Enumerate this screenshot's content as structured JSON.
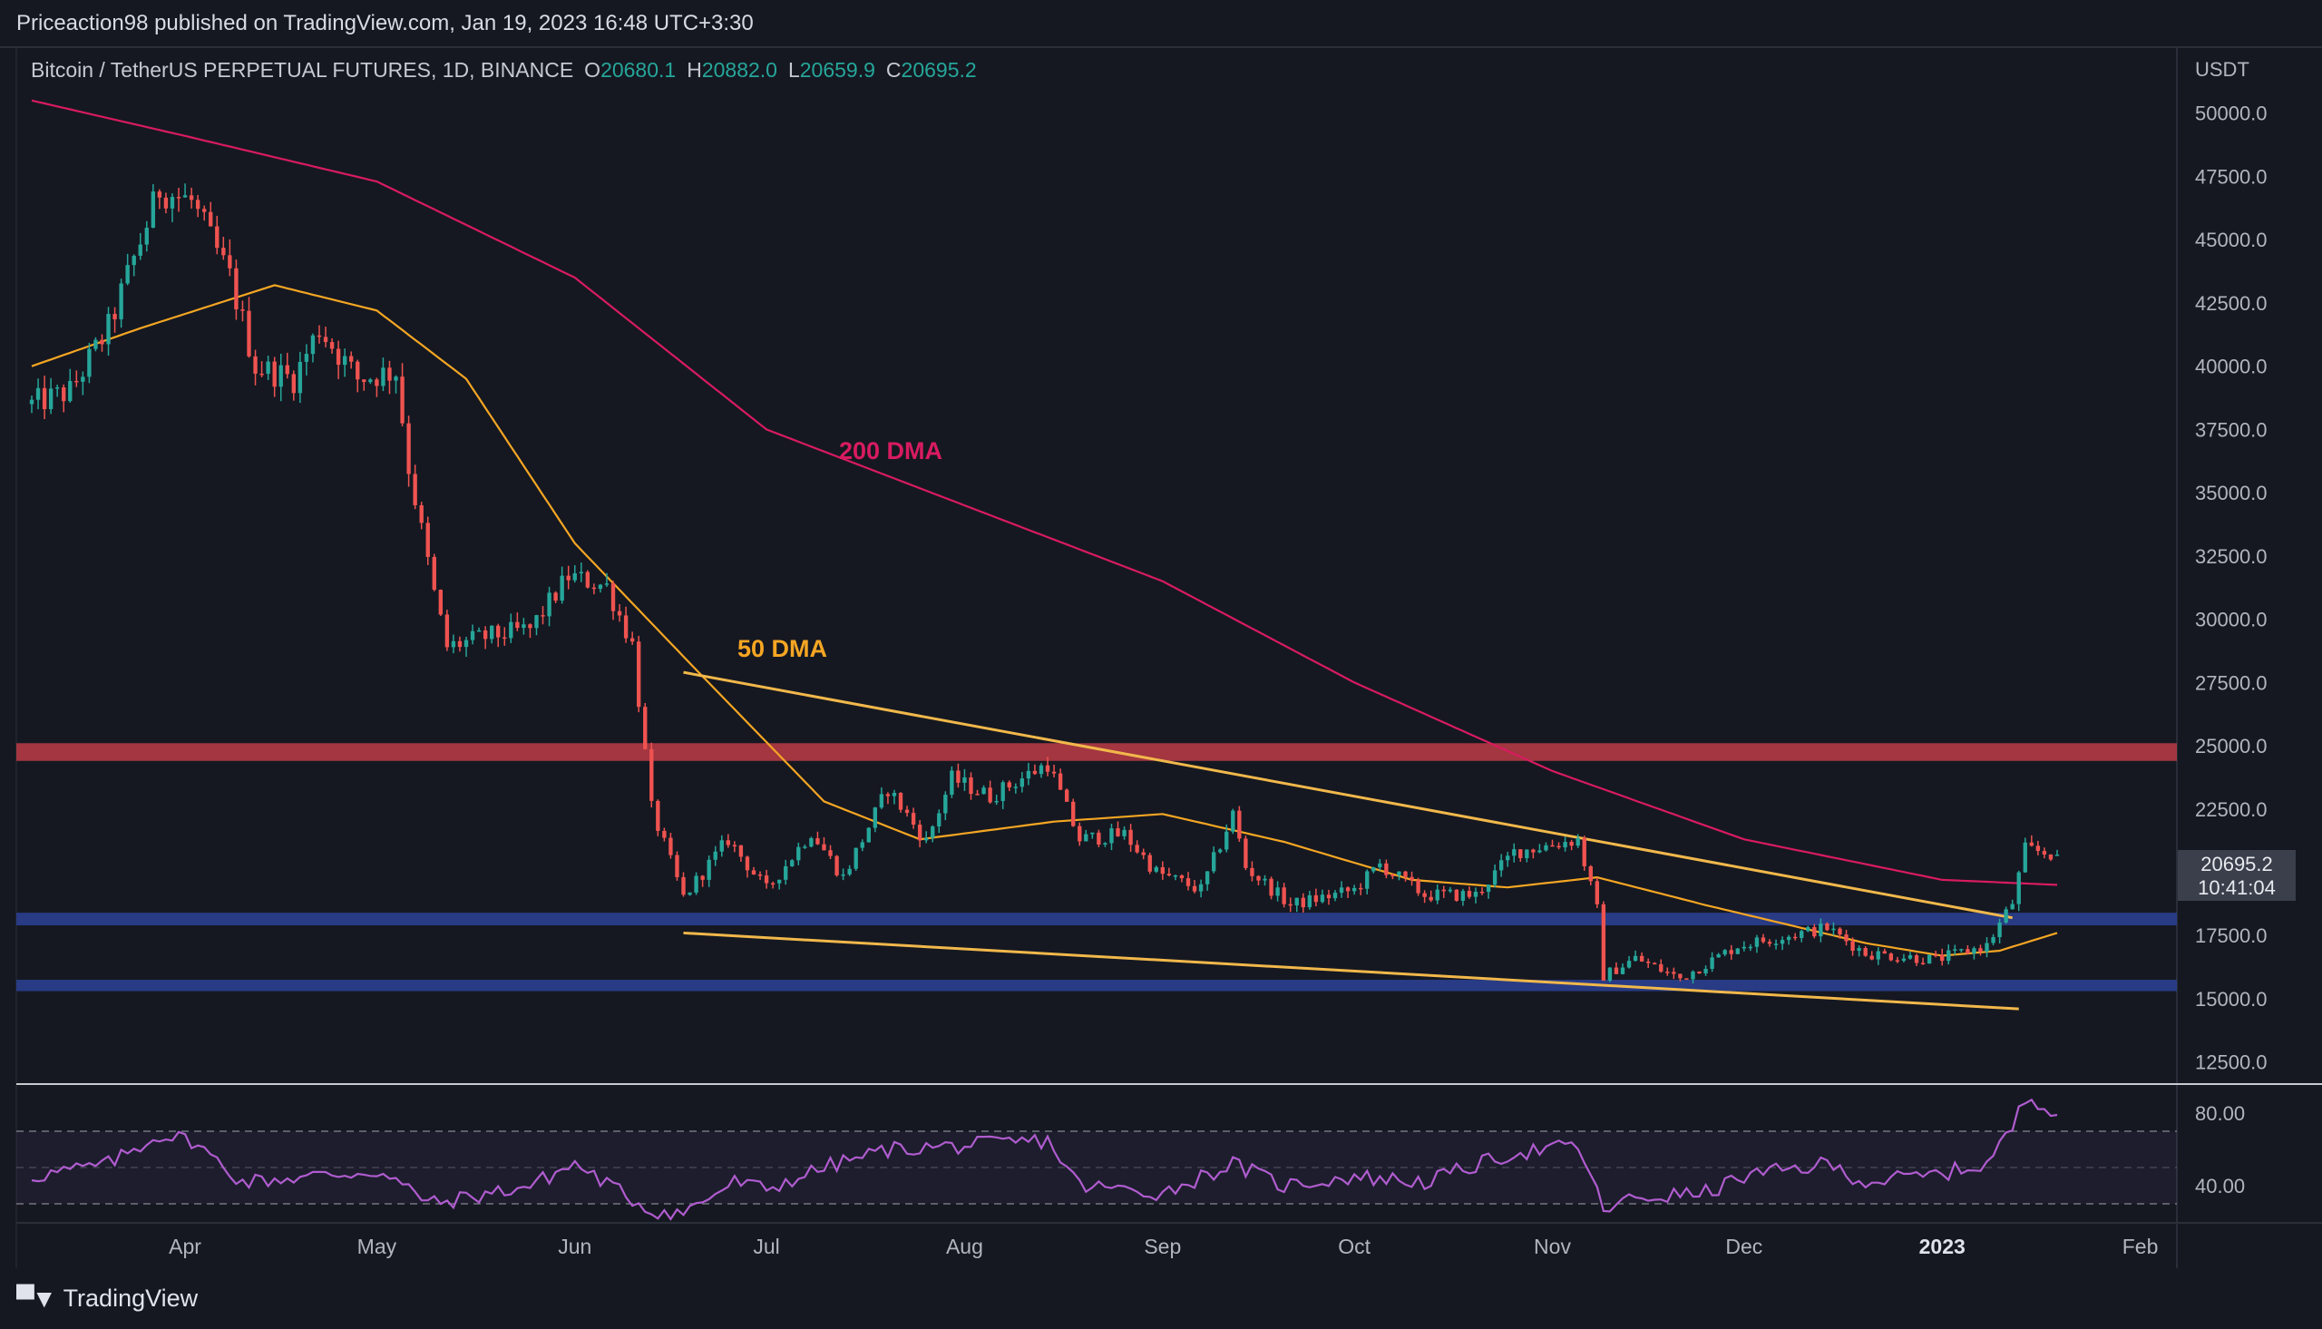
{
  "header": {
    "publisher_line": "Priceaction98 published on TradingView.com, Jan 19, 2023 16:48 UTC+3:30"
  },
  "legend": {
    "symbol": "Bitcoin / TetherUS PERPETUAL FUTURES, 1D, BINANCE",
    "o_label": "O",
    "o_value": "20680.1",
    "h_label": "H",
    "h_value": "20882.0",
    "l_label": "L",
    "l_value": "20659.9",
    "c_label": "C",
    "c_value": "20695.2"
  },
  "price_tag": {
    "price": "20695.2",
    "countdown": "10:41:04"
  },
  "footer": {
    "brand": "TradingView"
  },
  "colors": {
    "background": "#151821",
    "up": "#26a69a",
    "down": "#ef5350",
    "ma200": "#d81b60",
    "ma50": "#f5a623",
    "trendline": "#f2b84b",
    "resistance_zone": "#b33a44",
    "support_zone": "#2a3f8f",
    "rsi": "#b05ccf"
  },
  "chart_data": {
    "type": "candlestick",
    "title": "Bitcoin / TetherUS PERPETUAL FUTURES, 1D, BINANCE",
    "y_axis_unit": "USDT",
    "y_ticks": [
      "50000.0",
      "47500.0",
      "45000.0",
      "42500.0",
      "40000.0",
      "37500.0",
      "35000.0",
      "32500.0",
      "30000.0",
      "27500.0",
      "25000.0",
      "22500.0",
      "17500.0",
      "15000.0",
      "12500.0"
    ],
    "ylim": [
      11700,
      52500
    ],
    "x_ticks": [
      "Apr",
      "May",
      "Jun",
      "Jul",
      "Aug",
      "Sep",
      "Oct",
      "Nov",
      "Dec",
      "2023",
      "Feb"
    ],
    "x_tick_dates": [
      "2022-04-01",
      "2022-05-01",
      "2022-06-01",
      "2022-07-01",
      "2022-08-01",
      "2022-09-01",
      "2022-10-01",
      "2022-11-01",
      "2022-12-01",
      "2023-01-01",
      "2023-02-01"
    ],
    "date_range": [
      "2022-03-08",
      "2023-01-19"
    ],
    "price_anchors": [
      [
        "2022-03-08",
        38500
      ],
      [
        "2022-03-14",
        39000
      ],
      [
        "2022-03-20",
        41500
      ],
      [
        "2022-03-28",
        47000
      ],
      [
        "2022-04-02",
        46500
      ],
      [
        "2022-04-08",
        43500
      ],
      [
        "2022-04-12",
        40000
      ],
      [
        "2022-04-18",
        39500
      ],
      [
        "2022-04-22",
        41500
      ],
      [
        "2022-04-28",
        39500
      ],
      [
        "2022-05-04",
        39800
      ],
      [
        "2022-05-06",
        36000
      ],
      [
        "2022-05-10",
        31000
      ],
      [
        "2022-05-12",
        28900
      ],
      [
        "2022-05-18",
        29300
      ],
      [
        "2022-05-25",
        29600
      ],
      [
        "2022-05-31",
        31700
      ],
      [
        "2022-06-06",
        31300
      ],
      [
        "2022-06-10",
        29000
      ],
      [
        "2022-06-13",
        22500
      ],
      [
        "2022-06-18",
        19000
      ],
      [
        "2022-06-25",
        21300
      ],
      [
        "2022-07-01",
        19300
      ],
      [
        "2022-07-08",
        21600
      ],
      [
        "2022-07-13",
        19800
      ],
      [
        "2022-07-20",
        23300
      ],
      [
        "2022-07-26",
        21200
      ],
      [
        "2022-07-30",
        23700
      ],
      [
        "2022-08-05",
        23000
      ],
      [
        "2022-08-14",
        24300
      ],
      [
        "2022-08-19",
        21300
      ],
      [
        "2022-08-26",
        21500
      ],
      [
        "2022-08-31",
        20000
      ],
      [
        "2022-09-07",
        19300
      ],
      [
        "2022-09-12",
        22300
      ],
      [
        "2022-09-14",
        20200
      ],
      [
        "2022-09-21",
        18700
      ],
      [
        "2022-10-01",
        19300
      ],
      [
        "2022-10-05",
        20300
      ],
      [
        "2022-10-12",
        19100
      ],
      [
        "2022-10-20",
        19100
      ],
      [
        "2022-10-26",
        20800
      ],
      [
        "2022-11-05",
        21300
      ],
      [
        "2022-11-08",
        18500
      ],
      [
        "2022-11-09",
        15900
      ],
      [
        "2022-11-14",
        16600
      ],
      [
        "2022-11-21",
        15800
      ],
      [
        "2022-11-30",
        17100
      ],
      [
        "2022-12-14",
        17800
      ],
      [
        "2022-12-20",
        16800
      ],
      [
        "2022-12-31",
        16550
      ],
      [
        "2023-01-08",
        17100
      ],
      [
        "2023-01-12",
        18800
      ],
      [
        "2023-01-14",
        20900
      ],
      [
        "2023-01-19",
        20695
      ]
    ],
    "ohlc_last": {
      "open": 20680.1,
      "high": 20882.0,
      "low": 20659.9,
      "close": 20695.2
    },
    "moving_averages": [
      {
        "name": "200 DMA",
        "points": [
          [
            "2022-03-08",
            50500
          ],
          [
            "2022-04-01",
            49100
          ],
          [
            "2022-05-01",
            47300
          ],
          [
            "2022-06-01",
            43500
          ],
          [
            "2022-07-01",
            37500
          ],
          [
            "2022-08-01",
            34500
          ],
          [
            "2022-09-01",
            31500
          ],
          [
            "2022-10-01",
            27500
          ],
          [
            "2022-11-01",
            24000
          ],
          [
            "2022-12-01",
            21300
          ],
          [
            "2023-01-01",
            19700
          ],
          [
            "2023-01-19",
            19500
          ]
        ]
      },
      {
        "name": "50 DMA",
        "points": [
          [
            "2022-03-08",
            40000
          ],
          [
            "2022-03-25",
            41500
          ],
          [
            "2022-04-15",
            43200
          ],
          [
            "2022-05-01",
            42200
          ],
          [
            "2022-05-15",
            39500
          ],
          [
            "2022-06-01",
            33000
          ],
          [
            "2022-06-20",
            28000
          ],
          [
            "2022-07-10",
            22800
          ],
          [
            "2022-07-25",
            21300
          ],
          [
            "2022-08-15",
            22000
          ],
          [
            "2022-09-01",
            22300
          ],
          [
            "2022-09-20",
            21200
          ],
          [
            "2022-10-10",
            19700
          ],
          [
            "2022-10-25",
            19400
          ],
          [
            "2022-11-08",
            19800
          ],
          [
            "2022-11-25",
            18700
          ],
          [
            "2022-12-20",
            17200
          ],
          [
            "2023-01-01",
            16700
          ],
          [
            "2023-01-10",
            16900
          ],
          [
            "2023-01-19",
            17600
          ]
        ]
      }
    ],
    "trendlines": [
      {
        "name": "descending resistance",
        "from": [
          "2022-06-18",
          27900
        ],
        "to": [
          "2023-01-12",
          18200
        ]
      },
      {
        "name": "descending support",
        "from": [
          "2022-06-18",
          17600
        ],
        "to": [
          "2023-01-13",
          14600
        ]
      }
    ],
    "zones": [
      {
        "name": "resistance",
        "low": 24400,
        "high": 25100,
        "color": "#b33a44"
      },
      {
        "name": "support upper",
        "low": 17900,
        "high": 18400,
        "color": "#2a3f8f"
      },
      {
        "name": "support lower",
        "low": 15300,
        "high": 15750,
        "color": "#2a3f8f"
      }
    ],
    "annotations": [
      {
        "text": "200 DMA",
        "color": "#d81b60"
      },
      {
        "text": "50 DMA",
        "color": "#f5a623"
      }
    ],
    "rsi": {
      "y_ticks": [
        "80.00",
        "40.00"
      ],
      "levels": [
        70,
        50,
        30
      ],
      "ylim": [
        20,
        95
      ],
      "anchors": [
        [
          "2022-03-08",
          45
        ],
        [
          "2022-03-20",
          52
        ],
        [
          "2022-03-28",
          68
        ],
        [
          "2022-04-02",
          65
        ],
        [
          "2022-04-10",
          42
        ],
        [
          "2022-04-20",
          45
        ],
        [
          "2022-05-01",
          48
        ],
        [
          "2022-05-10",
          30
        ],
        [
          "2022-05-25",
          40
        ],
        [
          "2022-06-01",
          52
        ],
        [
          "2022-06-13",
          26
        ],
        [
          "2022-06-18",
          25
        ],
        [
          "2022-06-26",
          42
        ],
        [
          "2022-07-01",
          38
        ],
        [
          "2022-07-10",
          50
        ],
        [
          "2022-07-20",
          60
        ],
        [
          "2022-08-01",
          62
        ],
        [
          "2022-08-14",
          65
        ],
        [
          "2022-08-19",
          40
        ],
        [
          "2022-09-01",
          36
        ],
        [
          "2022-09-12",
          52
        ],
        [
          "2022-09-20",
          40
        ],
        [
          "2022-10-01",
          45
        ],
        [
          "2022-10-12",
          42
        ],
        [
          "2022-10-26",
          58
        ],
        [
          "2022-11-05",
          62
        ],
        [
          "2022-11-09",
          27
        ],
        [
          "2022-11-14",
          33
        ],
        [
          "2022-11-25",
          36
        ],
        [
          "2022-12-01",
          45
        ],
        [
          "2022-12-14",
          52
        ],
        [
          "2022-12-20",
          42
        ],
        [
          "2022-12-31",
          46
        ],
        [
          "2023-01-08",
          52
        ],
        [
          "2023-01-12",
          72
        ],
        [
          "2023-01-14",
          88
        ],
        [
          "2023-01-17",
          86
        ],
        [
          "2023-01-19",
          79
        ]
      ]
    }
  }
}
